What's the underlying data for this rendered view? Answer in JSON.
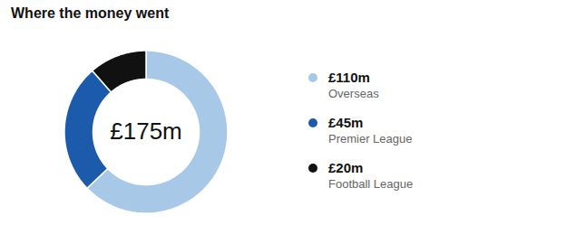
{
  "chart_data": {
    "type": "pie",
    "title": "Where the money went",
    "categories": [
      "Overseas",
      "Premier League",
      "Football League"
    ],
    "values": [
      110,
      45,
      20
    ],
    "value_labels": [
      "£110m",
      "£45m",
      "£20m"
    ],
    "colors": [
      "#a8c8e8",
      "#1c5aab",
      "#111111"
    ],
    "annotations": [
      "£175m"
    ],
    "legend": "right"
  }
}
